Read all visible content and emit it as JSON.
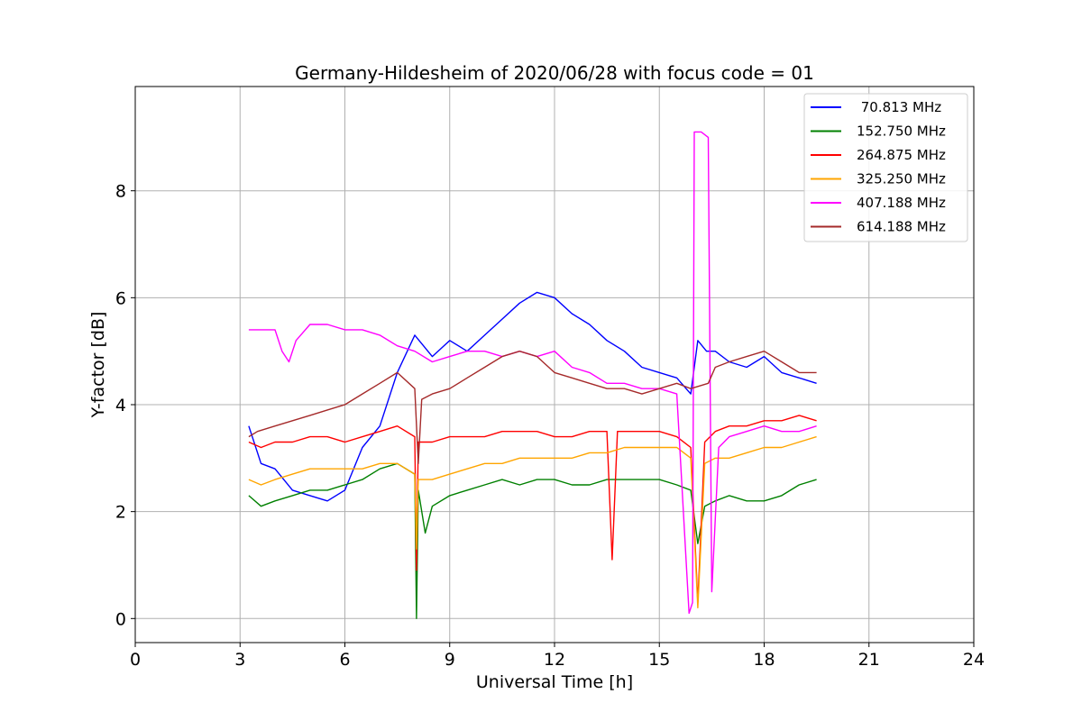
{
  "chart_data": {
    "type": "line",
    "title": "Germany-Hildesheim of 2020/06/28 with focus code = 01",
    "xlabel": "Universal Time [h]",
    "ylabel": "Y-factor [dB]",
    "xlim": [
      0,
      24
    ],
    "ylim": [
      -0.45,
      9.95
    ],
    "xticks": [
      0,
      3,
      6,
      9,
      12,
      15,
      18,
      21,
      24
    ],
    "yticks": [
      0,
      2,
      4,
      6,
      8
    ],
    "grid": true,
    "legend_position": "top-right",
    "series": [
      {
        "name": " 70.813 MHz",
        "color": "#0000ff",
        "x": [
          3.25,
          3.6,
          4.0,
          4.5,
          5.0,
          5.5,
          6.0,
          6.5,
          7.0,
          7.5,
          8.0,
          8.5,
          9.0,
          9.5,
          10.0,
          10.5,
          11.0,
          11.5,
          12.0,
          12.5,
          13.0,
          13.5,
          14.0,
          14.5,
          15.0,
          15.5,
          15.9,
          16.1,
          16.35,
          16.6,
          17.0,
          17.5,
          18.0,
          18.5,
          19.0,
          19.5
        ],
        "y": [
          3.6,
          2.9,
          2.8,
          2.4,
          2.3,
          2.2,
          2.4,
          3.2,
          3.6,
          4.6,
          5.3,
          4.9,
          5.2,
          5.0,
          5.3,
          5.6,
          5.9,
          6.1,
          6.0,
          5.7,
          5.5,
          5.2,
          5.0,
          4.7,
          4.6,
          4.5,
          4.2,
          5.2,
          5.0,
          5.0,
          4.8,
          4.7,
          4.9,
          4.6,
          4.5,
          4.4
        ]
      },
      {
        "name": "152.750 MHz",
        "color": "#008000",
        "x": [
          3.25,
          3.6,
          4.0,
          4.5,
          5.0,
          5.5,
          6.0,
          6.5,
          7.0,
          7.5,
          8.0,
          8.05,
          8.1,
          8.3,
          8.5,
          9.0,
          9.5,
          10.0,
          10.5,
          11.0,
          11.5,
          12.0,
          12.5,
          13.0,
          13.5,
          14.0,
          14.5,
          15.0,
          15.5,
          15.9,
          16.1,
          16.3,
          16.6,
          17.0,
          17.5,
          18.0,
          18.5,
          19.0,
          19.5
        ],
        "y": [
          2.3,
          2.1,
          2.2,
          2.3,
          2.4,
          2.4,
          2.5,
          2.6,
          2.8,
          2.9,
          2.7,
          0.0,
          2.4,
          1.6,
          2.1,
          2.3,
          2.4,
          2.5,
          2.6,
          2.5,
          2.6,
          2.6,
          2.5,
          2.5,
          2.6,
          2.6,
          2.6,
          2.6,
          2.5,
          2.4,
          1.4,
          2.1,
          2.2,
          2.3,
          2.2,
          2.2,
          2.3,
          2.5,
          2.6
        ]
      },
      {
        "name": "264.875 MHz",
        "color": "#ff0000",
        "x": [
          3.25,
          3.6,
          4.0,
          4.5,
          5.0,
          5.5,
          6.0,
          6.5,
          7.0,
          7.5,
          8.0,
          8.05,
          8.1,
          8.5,
          9.0,
          9.5,
          10.0,
          10.5,
          11.0,
          11.5,
          12.0,
          12.5,
          13.0,
          13.5,
          13.65,
          13.8,
          14.0,
          14.5,
          15.0,
          15.5,
          15.9,
          16.1,
          16.3,
          16.6,
          17.0,
          17.5,
          18.0,
          18.5,
          19.0,
          19.5
        ],
        "y": [
          3.3,
          3.2,
          3.3,
          3.3,
          3.4,
          3.4,
          3.3,
          3.4,
          3.5,
          3.6,
          3.4,
          0.9,
          3.3,
          3.3,
          3.4,
          3.4,
          3.4,
          3.5,
          3.5,
          3.5,
          3.4,
          3.4,
          3.5,
          3.5,
          1.1,
          3.5,
          3.5,
          3.5,
          3.5,
          3.4,
          3.2,
          0.3,
          3.3,
          3.5,
          3.6,
          3.6,
          3.7,
          3.7,
          3.8,
          3.7
        ]
      },
      {
        "name": "325.250 MHz",
        "color": "#ffa500",
        "x": [
          3.25,
          3.6,
          4.0,
          4.5,
          5.0,
          5.5,
          6.0,
          6.5,
          7.0,
          7.5,
          8.0,
          8.05,
          8.1,
          8.5,
          9.0,
          9.5,
          10.0,
          10.5,
          11.0,
          11.5,
          12.0,
          12.5,
          13.0,
          13.5,
          14.0,
          14.5,
          15.0,
          15.5,
          15.9,
          16.1,
          16.3,
          16.6,
          17.0,
          17.5,
          18.0,
          18.5,
          19.0,
          19.5
        ],
        "y": [
          2.6,
          2.5,
          2.6,
          2.7,
          2.8,
          2.8,
          2.8,
          2.8,
          2.9,
          2.9,
          2.7,
          1.3,
          2.6,
          2.6,
          2.7,
          2.8,
          2.9,
          2.9,
          3.0,
          3.0,
          3.0,
          3.0,
          3.1,
          3.1,
          3.2,
          3.2,
          3.2,
          3.2,
          3.0,
          0.2,
          2.9,
          3.0,
          3.0,
          3.1,
          3.2,
          3.2,
          3.3,
          3.4
        ]
      },
      {
        "name": "407.188 MHz",
        "color": "#ff00ff",
        "x": [
          3.25,
          3.6,
          4.0,
          4.2,
          4.4,
          4.6,
          5.0,
          5.5,
          6.0,
          6.5,
          7.0,
          7.5,
          8.0,
          8.5,
          9.0,
          9.5,
          10.0,
          10.5,
          11.0,
          11.5,
          12.0,
          12.5,
          13.0,
          13.5,
          14.0,
          14.5,
          15.0,
          15.5,
          15.85,
          15.95,
          16.0,
          16.2,
          16.4,
          16.5,
          16.7,
          17.0,
          17.5,
          18.0,
          18.5,
          19.0,
          19.5
        ],
        "y": [
          5.4,
          5.4,
          5.4,
          5.0,
          4.8,
          5.2,
          5.5,
          5.5,
          5.4,
          5.4,
          5.3,
          5.1,
          5.0,
          4.8,
          4.9,
          5.0,
          5.0,
          4.9,
          5.0,
          4.9,
          5.0,
          4.7,
          4.6,
          4.4,
          4.4,
          4.3,
          4.3,
          4.2,
          0.1,
          0.3,
          9.1,
          9.1,
          9.0,
          0.5,
          3.2,
          3.4,
          3.5,
          3.6,
          3.5,
          3.5,
          3.6
        ]
      },
      {
        "name": "614.188 MHz",
        "color": "#a52a2a",
        "x": [
          3.25,
          3.5,
          4.0,
          4.5,
          5.0,
          5.5,
          6.0,
          6.5,
          7.0,
          7.5,
          8.0,
          8.1,
          8.2,
          8.5,
          9.0,
          9.5,
          10.0,
          10.5,
          11.0,
          11.5,
          12.0,
          12.5,
          13.0,
          13.5,
          14.0,
          14.5,
          15.0,
          15.5,
          15.9,
          16.4,
          16.6,
          17.0,
          17.5,
          18.0,
          18.5,
          19.0,
          19.5
        ],
        "y": [
          3.4,
          3.5,
          3.6,
          3.7,
          3.8,
          3.9,
          4.0,
          4.2,
          4.4,
          4.6,
          4.3,
          2.9,
          4.1,
          4.2,
          4.3,
          4.5,
          4.7,
          4.9,
          5.0,
          4.9,
          4.6,
          4.5,
          4.4,
          4.3,
          4.3,
          4.2,
          4.3,
          4.4,
          4.3,
          4.4,
          4.7,
          4.8,
          4.9,
          5.0,
          4.8,
          4.6,
          4.6
        ]
      }
    ]
  }
}
